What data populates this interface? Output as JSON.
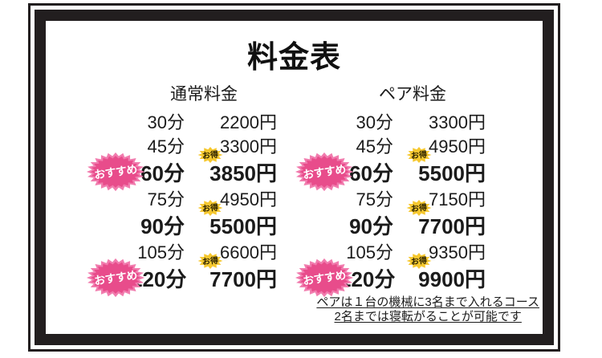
{
  "page": {
    "title": "料金表"
  },
  "table": {
    "columns": [
      {
        "id": "normal",
        "header": "通常料金"
      },
      {
        "id": "pair",
        "header": "ペア料金"
      }
    ],
    "rows": [
      {
        "time": "30分",
        "normal": "2200円",
        "pair": "3300円",
        "recommended": false,
        "deal": false,
        "highlight": false
      },
      {
        "time": "45分",
        "normal": "3300円",
        "pair": "4950円",
        "recommended": false,
        "deal": false,
        "highlight": false
      },
      {
        "time": "60分",
        "normal": "3850円",
        "pair": "5500円",
        "recommended": true,
        "deal": true,
        "highlight": true
      },
      {
        "time": "75分",
        "normal": "4950円",
        "pair": "7150円",
        "recommended": false,
        "deal": false,
        "highlight": false
      },
      {
        "time": "90分",
        "normal": "5500円",
        "pair": "7700円",
        "recommended": false,
        "deal": true,
        "highlight": true
      },
      {
        "time": "105分",
        "normal": "6600円",
        "pair": "9350円",
        "recommended": false,
        "deal": false,
        "highlight": false
      },
      {
        "time": "120分",
        "normal": "7700円",
        "pair": "9900円",
        "recommended": true,
        "deal": true,
        "highlight": true
      }
    ]
  },
  "badges": {
    "recommend_label": "おすすめ",
    "deal_label": "お得"
  },
  "notes": {
    "line1": "ペアは１台の機械に3名まで入れるコース",
    "line2": "2名までは寝転がることが可能です"
  },
  "colors": {
    "frame_black": "#221e1f",
    "text_black": "#1b1b1b",
    "badge_pink_outer": "#f17cae",
    "badge_pink_inner": "#e84c8b",
    "badge_text_white": "#ffffff",
    "deal_yellow": "#f6c82f",
    "deal_text": "#2b2200"
  }
}
